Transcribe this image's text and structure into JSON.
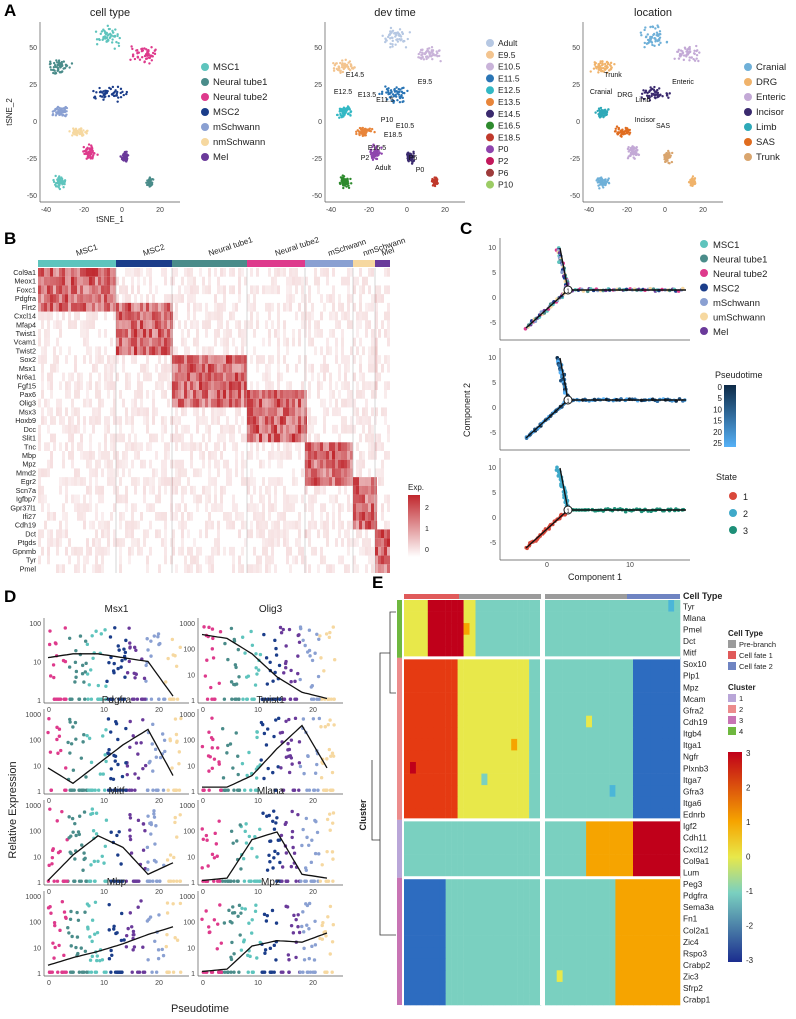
{
  "panels": {
    "a": "A",
    "b": "B",
    "c": "C",
    "d": "D",
    "e": "E"
  },
  "colors": {
    "MSC1": "#5ec4bd",
    "Neural tube1": "#4a8c8a",
    "Neural tube2": "#de3a8c",
    "MSC2": "#1b3d8a",
    "mSchwann": "#8aa0d2",
    "nmSchwann": "#f6d8a0",
    "Mel": "#6a3a9a",
    "fate1": "#e05a5a",
    "fate2": "#6f84c2",
    "prebranch": "#9b9b9b",
    "state1": "#d9483b",
    "state2": "#3fa9c9",
    "state3": "#1d8f78"
  },
  "panelA": {
    "plots": [
      {
        "title": "cell type",
        "legend": [
          "MSC1",
          "Neural tube1",
          "Neural tube2",
          "MSC2",
          "mSchwann",
          "nmSchwann",
          "Mel"
        ],
        "legend_colors": [
          "#5ec4bd",
          "#4a8c8a",
          "#de3a8c",
          "#1b3d8a",
          "#8aa0d2",
          "#f6d8a0",
          "#6a3a9a"
        ]
      },
      {
        "title": "dev time",
        "legend": [
          "Adult",
          "E9.5",
          "E10.5",
          "E11.5",
          "E12.5",
          "E13.5",
          "E14.5",
          "E16.5",
          "E18.5",
          "P0",
          "P2",
          "P6",
          "P10"
        ],
        "legend_colors": [
          "#b6c8e3",
          "#f3c48f",
          "#c9b3d9",
          "#2a75b5",
          "#33b8c4",
          "#e8853a",
          "#3a2a6e",
          "#2d8a2d",
          "#c0392b",
          "#8e44ad",
          "#c2185b",
          "#9e3b3b",
          "#9ccc65"
        ],
        "labels": [
          "E14.5",
          "E12.5",
          "E13.5",
          "E11.5",
          "E9.5",
          "P10",
          "E10.5",
          "E18.5",
          "E16.5",
          "P2",
          "P6",
          "P0",
          "Adult"
        ]
      },
      {
        "title": "location",
        "legend": [
          "Cranial",
          "DRG",
          "Enteric",
          "Incisor",
          "Limb",
          "SAS",
          "Trunk"
        ],
        "legend_colors": [
          "#6fb0d8",
          "#f0b36b",
          "#c3a9d6",
          "#3a2a6e",
          "#2ea9b8",
          "#e06c1f",
          "#d9a56e"
        ],
        "labels": [
          "Trunk",
          "Cranial",
          "DRG",
          "Limb",
          "Enteric",
          "Incisor",
          "SAS"
        ]
      }
    ],
    "xlabel": "tSNE_1",
    "ylabel": "tSNE_2",
    "xticks": [
      "-40",
      "-20",
      "0",
      "20"
    ],
    "yticks": [
      "50",
      "25",
      "0",
      "-25",
      "-50"
    ]
  },
  "panelB": {
    "columns": [
      "MSC1",
      "MSC2",
      "Neural tube1",
      "Neural tube2",
      "mSchwann",
      "nmSchwann",
      "Mel"
    ],
    "genes": [
      "Col9a1",
      "Meox1",
      "Foxc1",
      "Pdgfra",
      "Flrt2",
      "Cxcl14",
      "Mfap4",
      "Twist1",
      "Vcam1",
      "Twist2",
      "Sox2",
      "Msx1",
      "Nr6a1",
      "Fgf15",
      "Pax6",
      "Olig3",
      "Msx3",
      "Hoxb9",
      "Dcc",
      "Slit1",
      "Tnc",
      "Mbp",
      "Mpz",
      "Mmd2",
      "Egr2",
      "Scn7a",
      "Igfbp7",
      "Gpr37l1",
      "Ifi27",
      "Cdh19",
      "Dct",
      "Ptgds",
      "Gpnmb",
      "Tyr",
      "Pmel"
    ],
    "legend_title": "Exp.",
    "legend_ticks": [
      "2",
      "1",
      "0"
    ]
  },
  "panelC": {
    "legend1": [
      "MSC1",
      "Neural tube1",
      "Neural tube2",
      "MSC2",
      "mSchwann",
      "umSchwann",
      "Mel"
    ],
    "legend2_title": "Pseudotime",
    "legend2_ticks": [
      "0",
      "5",
      "10",
      "15",
      "20",
      "25"
    ],
    "legend3_title": "State",
    "legend3": [
      "1",
      "2",
      "3"
    ],
    "xlabel": "Component 1",
    "ylabel": "Component 2",
    "xticks": [
      "0",
      "10"
    ],
    "yticks": [
      "10",
      "5",
      "0",
      "-5"
    ],
    "branch_label": "1"
  },
  "panelD": {
    "genes": [
      "Msx1",
      "Olig3",
      "Pdgfra",
      "Twist1",
      "Mitf",
      "Mlana",
      "Mbp",
      "Mpz"
    ],
    "xlabel": "Pseudotime",
    "ylabel": "Relative Expression",
    "xticks": [
      "0",
      "10",
      "20"
    ],
    "yticks": [
      "1000",
      "100",
      "10",
      "1"
    ],
    "yticks_msx1": [
      "100",
      "10",
      "1"
    ]
  },
  "panelE": {
    "celltype_header": "Cell Type",
    "cluster_label": "Cluster",
    "genes": [
      "Tyr",
      "Mlana",
      "Pmel",
      "Dct",
      "Mitf",
      "Sox10",
      "Plp1",
      "Mpz",
      "Mcam",
      "Gfra2",
      "Cdh19",
      "Itgb4",
      "Itga1",
      "Ngfr",
      "Plxnb3",
      "Itga7",
      "Gfra3",
      "Itga6",
      "Ednrb",
      "Igf2",
      "Cdh11",
      "Cxcl12",
      "Col9a1",
      "Lum",
      "Peg3",
      "Pdgfra",
      "Sema3a",
      "Fn1",
      "Col2a1",
      "Zic4",
      "Rspo3",
      "Crabp2",
      "Zic3",
      "Sfrp2",
      "Crabp1"
    ],
    "legend_celltype_title": "Cell Type",
    "legend_celltype": [
      "Pre-branch",
      "Cell fate 1",
      "Cell fate 2"
    ],
    "legend_cluster_title": "Cluster",
    "legend_cluster": [
      "1",
      "2",
      "3",
      "4"
    ],
    "legend_cluster_colors": [
      "#b9a6d8",
      "#ec8c8c",
      "#c874b4",
      "#6fb83f"
    ],
    "scale_ticks": [
      "3",
      "2",
      "1",
      "0",
      "-1",
      "-2",
      "-3"
    ]
  }
}
